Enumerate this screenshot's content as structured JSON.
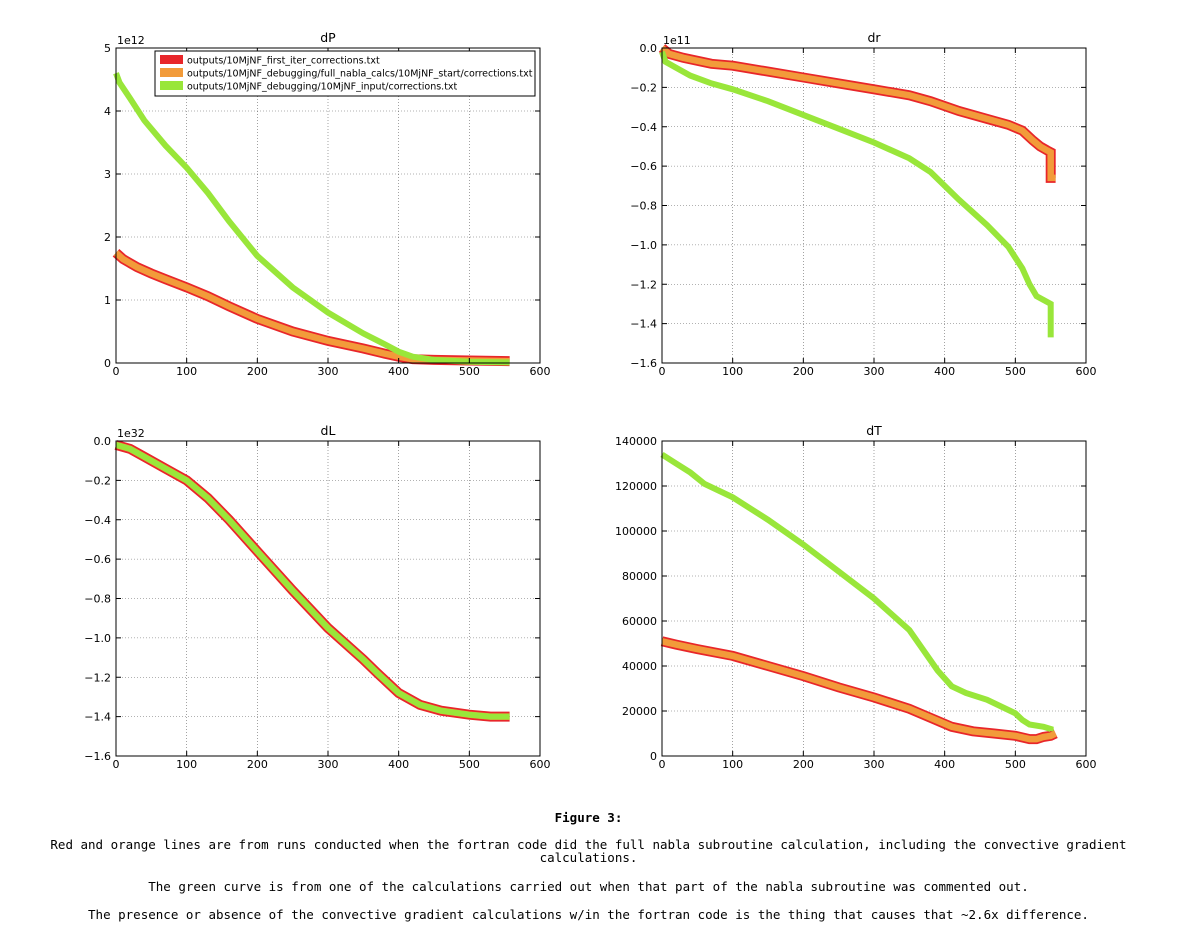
{
  "figure": {
    "label": "Figure 3:",
    "captions": [
      "Red and orange lines are from runs conducted when the fortran code did the full nabla subroutine calculation, including the convective gradient calculations.",
      "The green curve is from one of the calculations carried out when that part of the nabla subroutine was commented out.",
      "The presence or absence of the convective gradient calculations w/in the fortran code is the thing that causes that ~2.6x difference."
    ]
  },
  "legend": {
    "placement": "top-right of dP panel",
    "entries": [
      {
        "label": "outputs/10MjNF_first_iter_corrections.txt",
        "color": "#e8262a"
      },
      {
        "label": "outputs/10MjNF_debugging/full_nabla_calcs/10MjNF_start/corrections.txt",
        "color": "#f29b3a"
      },
      {
        "label": "outputs/10MjNF_debugging/10MjNF_input/corrections.txt",
        "color": "#99e63a"
      }
    ]
  },
  "chart_data": [
    {
      "type": "line",
      "title": "dP",
      "xlabel": "",
      "ylabel": "",
      "offset_label": "1e12",
      "xlim": [
        0,
        600
      ],
      "ylim": [
        0,
        5
      ],
      "xticks": [
        0,
        100,
        200,
        300,
        400,
        500,
        600
      ],
      "yticks": [
        0,
        1,
        2,
        3,
        4,
        5
      ],
      "ytick_labels": [
        "0",
        "1",
        "2",
        "3",
        "4",
        "5"
      ],
      "grid": true,
      "series": [
        {
          "name": "outputs/10MjNF_first_iter_corrections.txt",
          "color": "#e8262a",
          "x": [
            0,
            10,
            30,
            50,
            70,
            100,
            130,
            160,
            200,
            250,
            300,
            350,
            380,
            400,
            420,
            450,
            500,
            557
          ],
          "y": [
            1.75,
            1.65,
            1.52,
            1.42,
            1.33,
            1.2,
            1.06,
            0.9,
            0.7,
            0.5,
            0.35,
            0.23,
            0.15,
            0.1,
            0.06,
            0.05,
            0.04,
            0.03
          ]
        },
        {
          "name": "outputs/10MjNF_debugging/full_nabla_calcs/10MjNF_start/corrections.txt",
          "color": "#f29b3a",
          "x": [
            0,
            10,
            30,
            50,
            70,
            100,
            130,
            160,
            200,
            250,
            300,
            350,
            380,
            400,
            420,
            450,
            500,
            557
          ],
          "y": [
            1.75,
            1.65,
            1.52,
            1.42,
            1.33,
            1.2,
            1.06,
            0.9,
            0.7,
            0.5,
            0.35,
            0.23,
            0.15,
            0.1,
            0.06,
            0.05,
            0.04,
            0.03
          ]
        },
        {
          "name": "outputs/10MjNF_debugging/10MjNF_input/corrections.txt",
          "color": "#99e63a",
          "x": [
            0,
            5,
            20,
            40,
            70,
            100,
            130,
            160,
            200,
            250,
            300,
            350,
            380,
            400,
            420,
            450,
            500,
            557
          ],
          "y": [
            4.6,
            4.45,
            4.2,
            3.85,
            3.45,
            3.1,
            2.7,
            2.25,
            1.7,
            1.2,
            0.8,
            0.47,
            0.3,
            0.18,
            0.1,
            0.05,
            0.02,
            0.01
          ]
        }
      ]
    },
    {
      "type": "line",
      "title": "dr",
      "xlabel": "",
      "ylabel": "",
      "offset_label": "1e11",
      "xlim": [
        0,
        600
      ],
      "ylim": [
        -1.6,
        0
      ],
      "xticks": [
        0,
        100,
        200,
        300,
        400,
        500,
        600
      ],
      "yticks": [
        -1.6,
        -1.4,
        -1.2,
        -1.0,
        -0.8,
        -0.6,
        -0.4,
        -0.2,
        0.0
      ],
      "ytick_labels": [
        "−1.6",
        "−1.4",
        "−1.2",
        "−1.0",
        "−0.8",
        "−0.6",
        "−0.4",
        "−0.2",
        "0.0"
      ],
      "grid": true,
      "series": [
        {
          "name": "outputs/10MjNF_first_iter_corrections.txt",
          "color": "#e8262a",
          "x": [
            0,
            10,
            30,
            70,
            100,
            150,
            200,
            250,
            300,
            350,
            380,
            420,
            460,
            490,
            510,
            525,
            535,
            545,
            550,
            550,
            557
          ],
          "y": [
            0.0,
            -0.03,
            -0.05,
            -0.08,
            -0.09,
            -0.12,
            -0.15,
            -0.18,
            -0.21,
            -0.24,
            -0.27,
            -0.32,
            -0.36,
            -0.39,
            -0.42,
            -0.47,
            -0.5,
            -0.52,
            -0.53,
            -0.66,
            -0.66
          ]
        },
        {
          "name": "outputs/10MjNF_debugging/full_nabla_calcs/10MjNF_start/corrections.txt",
          "color": "#f29b3a",
          "x": [
            0,
            10,
            30,
            70,
            100,
            150,
            200,
            250,
            300,
            350,
            380,
            420,
            460,
            490,
            510,
            525,
            535,
            545,
            550,
            550,
            557
          ],
          "y": [
            0.0,
            -0.03,
            -0.05,
            -0.08,
            -0.09,
            -0.12,
            -0.15,
            -0.18,
            -0.21,
            -0.24,
            -0.27,
            -0.32,
            -0.36,
            -0.39,
            -0.42,
            -0.47,
            -0.5,
            -0.52,
            -0.53,
            -0.66,
            -0.66
          ]
        },
        {
          "name": "outputs/10MjNF_debugging/10MjNF_input/corrections.txt",
          "color": "#99e63a",
          "x": [
            0,
            5,
            20,
            40,
            70,
            100,
            150,
            200,
            250,
            300,
            350,
            380,
            420,
            460,
            490,
            510,
            520,
            530,
            540,
            550,
            550
          ],
          "y": [
            -0.02,
            -0.07,
            -0.1,
            -0.14,
            -0.18,
            -0.21,
            -0.27,
            -0.34,
            -0.41,
            -0.48,
            -0.56,
            -0.63,
            -0.77,
            -0.9,
            -1.01,
            -1.12,
            -1.2,
            -1.26,
            -1.28,
            -1.3,
            -1.47
          ]
        }
      ]
    },
    {
      "type": "line",
      "title": "dL",
      "xlabel": "",
      "ylabel": "",
      "offset_label": "1e32",
      "xlim": [
        0,
        600
      ],
      "ylim": [
        -1.6,
        0
      ],
      "xticks": [
        0,
        100,
        200,
        300,
        400,
        500,
        600
      ],
      "yticks": [
        -1.6,
        -1.4,
        -1.2,
        -1.0,
        -0.8,
        -0.6,
        -0.4,
        -0.2,
        0.0
      ],
      "ytick_labels": [
        "−1.6",
        "−1.4",
        "−1.2",
        "−1.0",
        "−0.8",
        "−0.6",
        "−0.4",
        "−0.2",
        "0.0"
      ],
      "grid": true,
      "series": [
        {
          "name": "outputs/10MjNF_first_iter_corrections.txt",
          "color": "#e8262a",
          "x": [
            0,
            20,
            40,
            70,
            100,
            130,
            160,
            200,
            250,
            300,
            350,
            370,
            400,
            430,
            460,
            500,
            530,
            557
          ],
          "y": [
            -0.02,
            -0.04,
            -0.08,
            -0.14,
            -0.2,
            -0.29,
            -0.4,
            -0.56,
            -0.76,
            -0.95,
            -1.11,
            -1.18,
            -1.28,
            -1.34,
            -1.37,
            -1.39,
            -1.4,
            -1.4
          ]
        },
        {
          "name": "outputs/10MjNF_debugging/full_nabla_calcs/10MjNF_start/corrections.txt",
          "color": "#f29b3a",
          "x": [
            0,
            20,
            40,
            70,
            100,
            130,
            160,
            200,
            250,
            300,
            350,
            370,
            400,
            430,
            460,
            500,
            530,
            557
          ],
          "y": [
            -0.02,
            -0.04,
            -0.08,
            -0.14,
            -0.2,
            -0.29,
            -0.4,
            -0.56,
            -0.76,
            -0.95,
            -1.11,
            -1.18,
            -1.28,
            -1.34,
            -1.37,
            -1.39,
            -1.4,
            -1.4
          ]
        },
        {
          "name": "outputs/10MjNF_debugging/10MjNF_input/corrections.txt",
          "color": "#99e63a",
          "x": [
            0,
            20,
            40,
            70,
            100,
            130,
            160,
            200,
            250,
            300,
            350,
            370,
            400,
            430,
            460,
            500,
            530,
            557
          ],
          "y": [
            -0.02,
            -0.04,
            -0.08,
            -0.14,
            -0.2,
            -0.29,
            -0.4,
            -0.56,
            -0.76,
            -0.95,
            -1.11,
            -1.18,
            -1.28,
            -1.34,
            -1.37,
            -1.39,
            -1.4,
            -1.4
          ]
        }
      ]
    },
    {
      "type": "line",
      "title": "dT",
      "xlabel": "",
      "ylabel": "",
      "offset_label": "",
      "xlim": [
        0,
        600
      ],
      "ylim": [
        0,
        140000
      ],
      "xticks": [
        0,
        100,
        200,
        300,
        400,
        500,
        600
      ],
      "yticks": [
        0,
        20000,
        40000,
        60000,
        80000,
        100000,
        120000,
        140000
      ],
      "ytick_labels": [
        "0",
        "20000",
        "40000",
        "60000",
        "80000",
        "100000",
        "120000",
        "140000"
      ],
      "grid": true,
      "series": [
        {
          "name": "outputs/10MjNF_first_iter_corrections.txt",
          "color": "#e8262a",
          "x": [
            0,
            20,
            50,
            100,
            150,
            200,
            250,
            300,
            350,
            380,
            410,
            440,
            470,
            500,
            520,
            530,
            540,
            550,
            557
          ],
          "y": [
            51000,
            49500,
            47500,
            44500,
            40000,
            35500,
            30500,
            26000,
            21000,
            17000,
            13000,
            11000,
            10000,
            9000,
            7500,
            7500,
            8500,
            9000,
            10000
          ]
        },
        {
          "name": "outputs/10MjNF_debugging/full_nabla_calcs/10MjNF_start/corrections.txt",
          "color": "#f29b3a",
          "x": [
            0,
            20,
            50,
            100,
            150,
            200,
            250,
            300,
            350,
            380,
            410,
            440,
            470,
            500,
            520,
            530,
            540,
            550,
            557
          ],
          "y": [
            51000,
            49500,
            47500,
            44500,
            40000,
            35500,
            30500,
            26000,
            21000,
            17000,
            13000,
            11000,
            10000,
            9000,
            7500,
            7500,
            8500,
            9000,
            10000
          ]
        },
        {
          "name": "outputs/10MjNF_debugging/10MjNF_input/corrections.txt",
          "color": "#99e63a",
          "x": [
            0,
            20,
            40,
            60,
            100,
            150,
            200,
            250,
            300,
            350,
            370,
            390,
            410,
            430,
            460,
            500,
            510,
            520,
            540,
            550,
            550
          ],
          "y": [
            134000,
            130000,
            126000,
            121000,
            115000,
            105000,
            94000,
            82000,
            70000,
            56000,
            47000,
            38000,
            31000,
            28000,
            25000,
            19000,
            16000,
            14000,
            13000,
            12000,
            11000
          ]
        }
      ]
    }
  ]
}
